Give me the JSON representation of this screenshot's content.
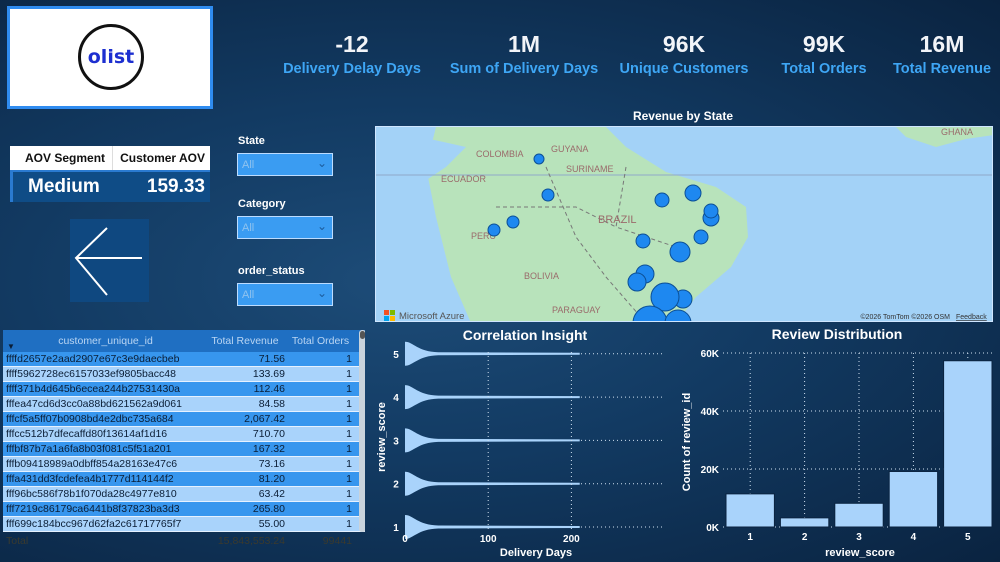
{
  "logo": {
    "text": "olist"
  },
  "kpis": [
    {
      "value": "-12",
      "label": "Delivery Delay Days"
    },
    {
      "value": "1M",
      "label": "Sum of Delivery Days"
    },
    {
      "value": "96K",
      "label": "Unique Customers"
    },
    {
      "value": "99K",
      "label": "Total Orders"
    },
    {
      "value": "16M",
      "label": "Total Revenue"
    }
  ],
  "aov": {
    "headers": [
      "AOV Segment",
      "Customer AOV"
    ],
    "segment": "Medium",
    "value": "159.33"
  },
  "back_button": {
    "icon": "arrow-left-icon"
  },
  "slicers": [
    {
      "label": "State",
      "value": "All"
    },
    {
      "label": "Category",
      "value": "All"
    },
    {
      "label": "order_status",
      "value": "All"
    }
  ],
  "map": {
    "title": "Revenue by State",
    "labels": [
      "GUYANA",
      "SURINAME",
      "COLOMBIA",
      "ECUADOR",
      "BRAZIL",
      "PERU",
      "BOLIVIA",
      "PARAGUAY",
      "GHANA"
    ],
    "brand": "Microsoft Azure",
    "attribution": "©2026 TomTom ©2026 OSM",
    "feedback": "Feedback",
    "bubble_color": "#1e88f0"
  },
  "table": {
    "headers": [
      "customer_unique_id",
      "Total Revenue",
      "Total Orders"
    ],
    "rows": [
      [
        "ffffd2657e2aad2907e67c3e9daecbeb",
        "71.56",
        "1"
      ],
      [
        "ffff5962728ec6157033ef9805bacc48",
        "133.69",
        "1"
      ],
      [
        "ffff371b4d645b6ecea244b27531430a",
        "112.46",
        "1"
      ],
      [
        "fffea47cd6d3cc0a88bd621562a9d061",
        "84.58",
        "1"
      ],
      [
        "fffcf5a5ff07b0908bd4e2dbc735a684",
        "2,067.42",
        "1"
      ],
      [
        "fffcc512b7dfecaffd80f13614af1d16",
        "710.70",
        "1"
      ],
      [
        "fffbf87b7a1a6fa8b03f081c5f51a201",
        "167.32",
        "1"
      ],
      [
        "fffb09418989a0dbff854a28163e47c6",
        "73.16",
        "1"
      ],
      [
        "fffa431dd3fcdefea4b1777d114144f2",
        "81.20",
        "1"
      ],
      [
        "fff96bc586f78b1f070da28c4977e810",
        "63.42",
        "1"
      ],
      [
        "fff7219c86179ca6441b8f37823ba3d3",
        "265.80",
        "1"
      ],
      [
        "fff699c184bcc967d62fa2c61717765f7",
        "55.00",
        "1"
      ]
    ],
    "total": {
      "label": "Total",
      "revenue": "15,843,553.24",
      "orders": "99441"
    }
  },
  "chart_data": [
    {
      "type": "violin",
      "title": "Correlation Insight",
      "xlabel": "Delivery Days",
      "ylabel": "review_score",
      "xticks": [
        "0",
        "100",
        "200"
      ],
      "xlim": [
        0,
        250
      ],
      "yticks": [
        "1",
        "2",
        "3",
        "4",
        "5"
      ],
      "categories": [
        1,
        2,
        3,
        4,
        5
      ],
      "max_delivery_days": [
        210,
        210,
        210,
        210,
        210
      ],
      "grid": true,
      "color": "#a9d3fb"
    },
    {
      "type": "bar",
      "title": "Review Distribution",
      "xlabel": "review_score",
      "ylabel": "Count of review_id",
      "categories": [
        "1",
        "2",
        "3",
        "4",
        "5"
      ],
      "values": [
        11424,
        3151,
        8179,
        19142,
        57328
      ],
      "ylim": [
        0,
        60000
      ],
      "yticks": [
        "0K",
        "20K",
        "40K",
        "60K"
      ],
      "grid": true,
      "color": "#a9d3fb"
    }
  ]
}
